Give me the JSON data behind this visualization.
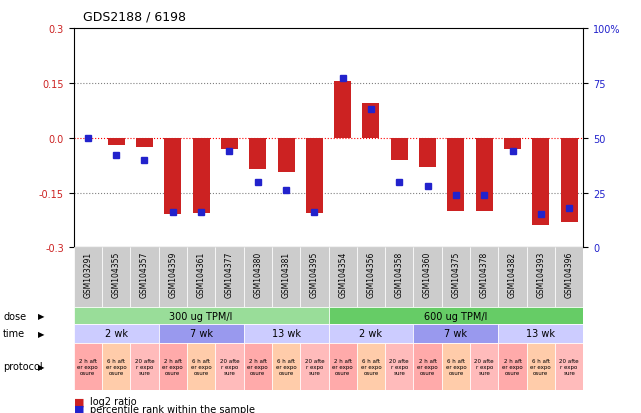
{
  "title": "GDS2188 / 6198",
  "samples": [
    "GSM103291",
    "GSM104355",
    "GSM104357",
    "GSM104359",
    "GSM104361",
    "GSM104377",
    "GSM104380",
    "GSM104381",
    "GSM104395",
    "GSM104354",
    "GSM104356",
    "GSM104358",
    "GSM104360",
    "GSM104375",
    "GSM104378",
    "GSM104382",
    "GSM104393",
    "GSM104396"
  ],
  "log2_ratio": [
    0.0,
    -0.02,
    -0.025,
    -0.21,
    -0.205,
    -0.03,
    -0.085,
    -0.095,
    -0.205,
    0.155,
    0.095,
    -0.06,
    -0.08,
    -0.2,
    -0.2,
    -0.03,
    -0.24,
    -0.23
  ],
  "percentile": [
    50,
    42,
    40,
    16,
    16,
    44,
    30,
    26,
    16,
    77,
    63,
    30,
    28,
    24,
    24,
    44,
    15,
    18
  ],
  "bar_color": "#cc2222",
  "dot_color": "#2222cc",
  "ylim_left": [
    -0.3,
    0.3
  ],
  "ylim_right": [
    0,
    100
  ],
  "yticks_left": [
    -0.3,
    -0.15,
    0.0,
    0.15,
    0.3
  ],
  "yticks_right": [
    0,
    25,
    50,
    75,
    100
  ],
  "dose_colors": [
    "#99dd99",
    "#66cc66"
  ],
  "time_color_light": "#ccccff",
  "time_color_dark": "#9999ee",
  "protocol_color_1": "#ffaaaa",
  "protocol_color_2": "#ffccaa",
  "protocol_color_3": "#ffbbbb",
  "bg_color": "#ffffff",
  "axis_label_color_left": "#cc2222",
  "axis_label_color_right": "#2222cc",
  "xlabels_bg": "#cccccc"
}
